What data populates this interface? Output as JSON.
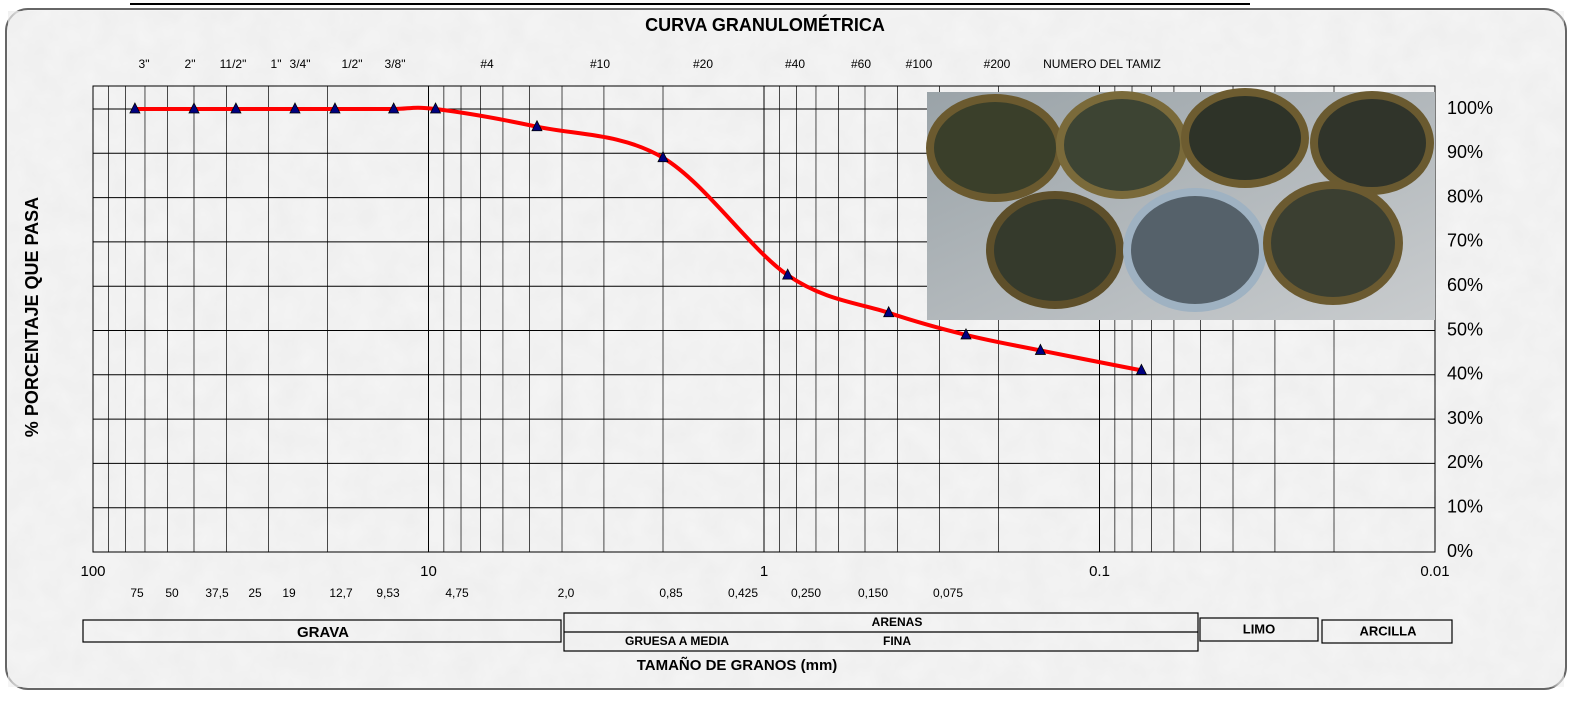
{
  "chart_data": {
    "type": "line",
    "title": "CURVA GRANULOMÉTRICA",
    "x_label": "TAMAÑO DE GRANOS (mm)",
    "y_label": "% PORCENTAJE QUE PASA",
    "x": [
      75,
      50,
      37.5,
      25,
      19,
      12.7,
      9.53,
      4.75,
      2.0,
      0.85,
      0.425,
      0.25,
      0.15,
      0.075
    ],
    "series": [
      {
        "color": "#ff0000",
        "marker_color": "#000080",
        "values": [
          100,
          100,
          100,
          100,
          100,
          100,
          100,
          96,
          89,
          62.5,
          54,
          49,
          45.5,
          41
        ]
      }
    ],
    "xlim": [
      100,
      0.01
    ],
    "xticks": [
      100,
      10,
      1,
      0.1,
      0.01
    ],
    "x_log": true,
    "ylim": [
      0,
      100
    ],
    "yticks": [
      {
        "value": 0,
        "label": "0%"
      },
      {
        "value": 10,
        "label": "10%"
      },
      {
        "value": 20,
        "label": "20%"
      },
      {
        "value": 30,
        "label": "30%"
      },
      {
        "value": 40,
        "label": "40%"
      },
      {
        "value": 50,
        "label": "50%"
      },
      {
        "value": 60,
        "label": "60%"
      },
      {
        "value": 70,
        "label": "70%"
      },
      {
        "value": 80,
        "label": "80%"
      },
      {
        "value": 90,
        "label": "90%"
      },
      {
        "value": 100,
        "label": "100%"
      }
    ],
    "grid": true,
    "sieve_labels": [
      "3\"",
      "2\"",
      "11/2\"",
      "1\"",
      "3/4\"",
      "1/2\"",
      "3/8\"",
      "#4",
      "#10",
      "#20",
      "#40",
      "#60",
      "#100",
      "#200"
    ],
    "sieve_axis_label": "NUMERO DEL TAMIZ",
    "size_labels": [
      "75",
      "50",
      "37,5",
      "25",
      "19",
      "12,7",
      "9,53",
      "4,75",
      "2,0",
      "0,85",
      "0,425",
      "0,250",
      "0,150",
      "0,075"
    ],
    "soil_classes": {
      "grava": "GRAVA",
      "arenas": "ARENAS",
      "gruesa": "GRUESA A MEDIA",
      "fina": "FINA",
      "limo": "LIMO",
      "arcilla": "ARCILLA"
    }
  }
}
